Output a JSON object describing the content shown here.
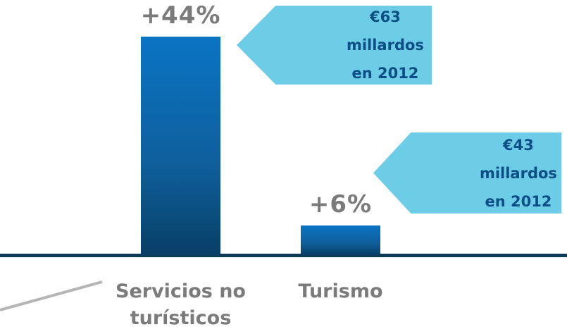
{
  "chart_data": {
    "type": "bar",
    "categories": [
      "Servicios no turísticos",
      "Turismo"
    ],
    "values": [
      44,
      6
    ],
    "value_labels": [
      "+44%",
      "+6%"
    ],
    "annotations": [
      "€63 millardos en 2012",
      "€43 millardos en 2012"
    ]
  }
}
